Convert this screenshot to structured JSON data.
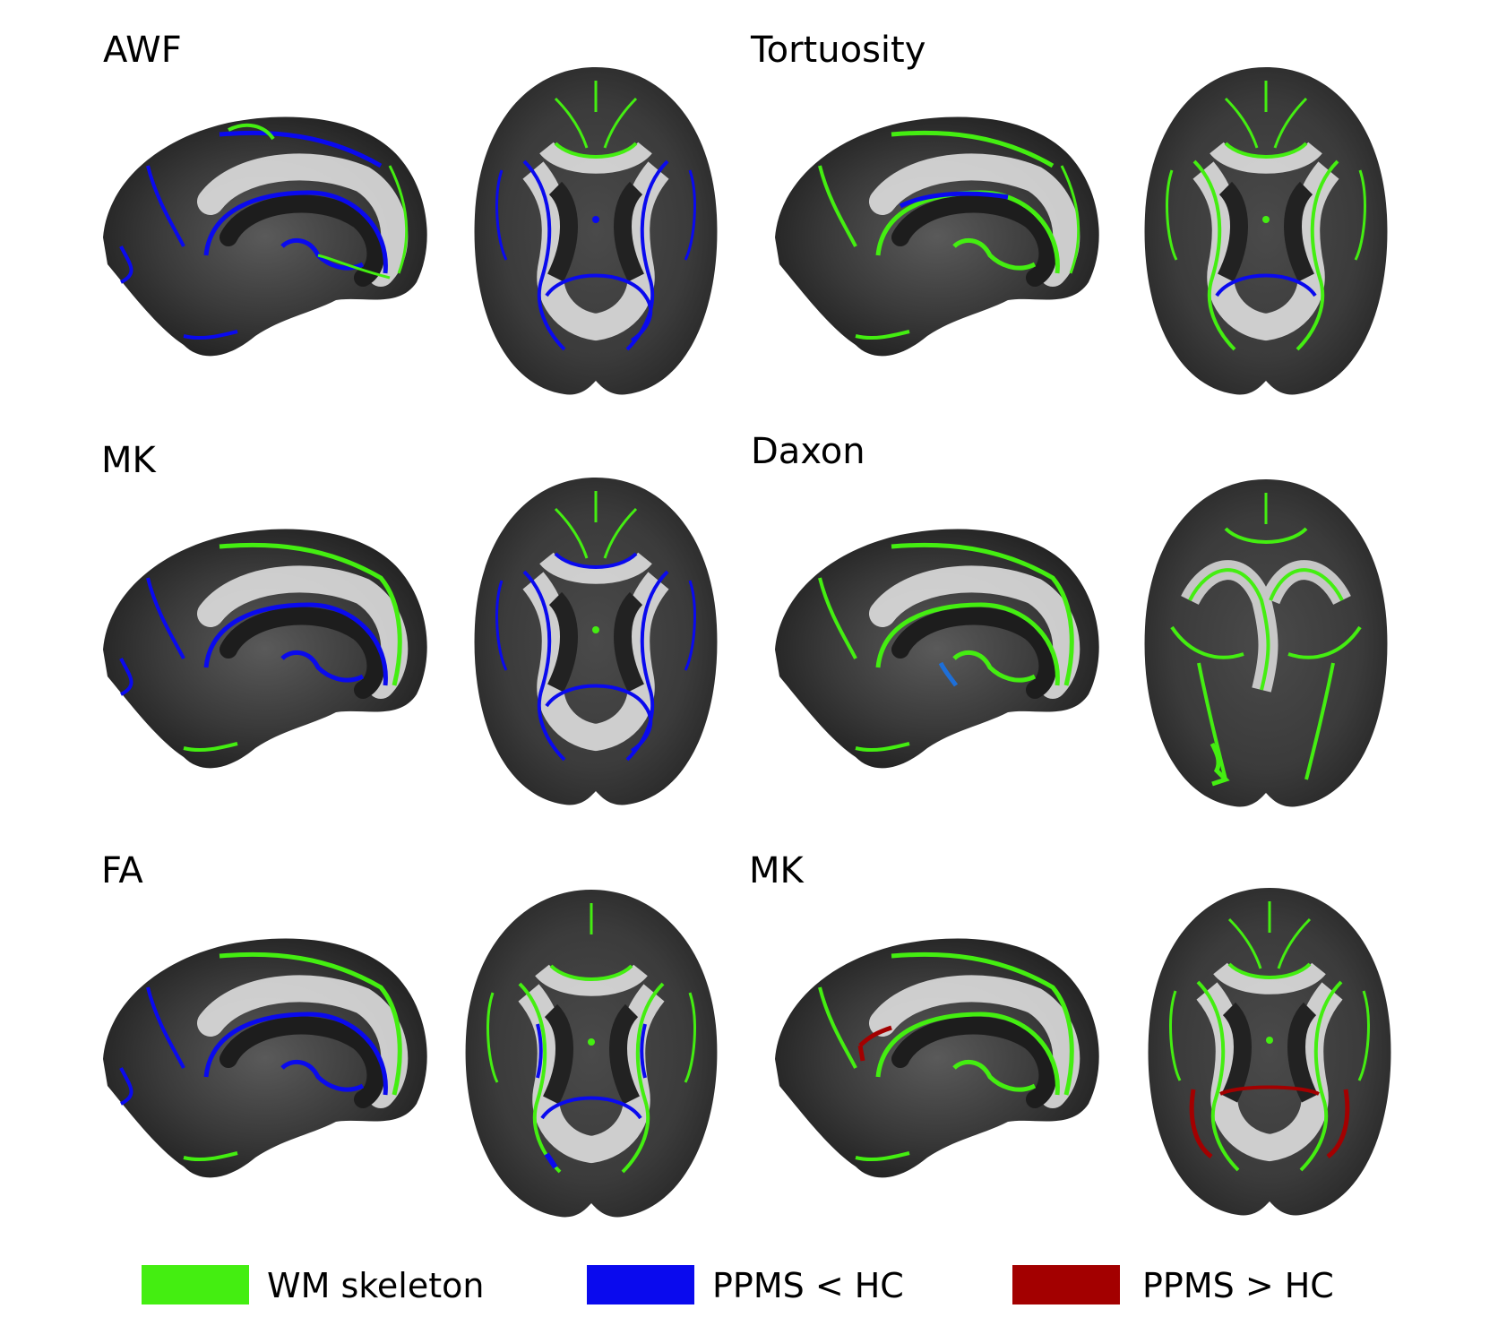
{
  "panels": [
    {
      "label": "AWF"
    },
    {
      "label": "Tortuosity"
    },
    {
      "label": "MK"
    },
    {
      "label": "Daxon"
    },
    {
      "label": "FA"
    },
    {
      "label": "MK"
    }
  ],
  "legend": [
    {
      "label": "WM skeleton",
      "color": "#44ee11"
    },
    {
      "label": "PPMS < HC",
      "color": "#0a0aee"
    },
    {
      "label": "PPMS > HC",
      "color": "#a30000"
    }
  ],
  "colors": {
    "skeleton": "#44ee11",
    "decrease": "#0a0aee",
    "increase": "#a30000"
  }
}
